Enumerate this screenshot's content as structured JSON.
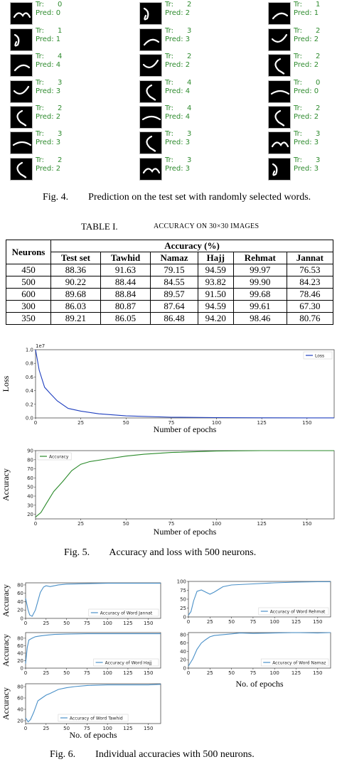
{
  "predictions": [
    {
      "tr": "Tr:      0",
      "pred": "Pred: 0"
    },
    {
      "tr": "Tr:      1",
      "pred": "Pred: 1"
    },
    {
      "tr": "Tr:      4",
      "pred": "Pred: 4"
    },
    {
      "tr": "Tr:      3",
      "pred": "Pred: 3"
    },
    {
      "tr": "Tr:      2",
      "pred": "Pred: 2"
    },
    {
      "tr": "Tr:      3",
      "pred": "Pred: 3"
    },
    {
      "tr": "Tr:      2",
      "pred": "Pred: 2"
    },
    {
      "tr": "Tr:      2",
      "pred": "Pred: 2"
    },
    {
      "tr": "Tr:      3",
      "pred": "Pred: 3"
    },
    {
      "tr": "Tr:      2",
      "pred": "Pred: 2"
    },
    {
      "tr": "Tr:      4",
      "pred": "Pred: 4"
    },
    {
      "tr": "Tr:      4",
      "pred": "Pred: 4"
    },
    {
      "tr": "Tr:      3",
      "pred": "Pred: 3"
    },
    {
      "tr": "Tr:      3",
      "pred": "Pred: 3"
    },
    {
      "tr": "Tr:      1",
      "pred": "Pred: 1"
    },
    {
      "tr": "Tr:      2",
      "pred": "Pred: 2"
    },
    {
      "tr": "Tr:      2",
      "pred": "Pred: 2"
    },
    {
      "tr": "Tr:      0",
      "pred": "Pred: 0"
    },
    {
      "tr": "Tr:      2",
      "pred": "Pred: 2"
    },
    {
      "tr": "Tr:      3",
      "pred": "Pred: 3"
    },
    {
      "tr": "Tr:      3",
      "pred": "Pred: 3"
    }
  ],
  "fig4_caption": "Fig. 4.        Prediction on the test set with randomly selected words.",
  "table_caption_num": "TABLE I.",
  "table_caption_text": "ACCURACY ON 30×30 IMAGES",
  "table": {
    "col_neurons": "Neurons",
    "col_group": "Accuracy (%)",
    "subcols": [
      "Test set",
      "Tawhid",
      "Namaz",
      "Hajj",
      "Rehmat",
      "Jannat"
    ],
    "rows": [
      [
        "450",
        "88.36",
        "91.63",
        "79.15",
        "94.59",
        "99.97",
        "76.53"
      ],
      [
        "500",
        "90.22",
        "88.44",
        "84.55",
        "93.82",
        "99.90",
        "84.23"
      ],
      [
        "600",
        "89.68",
        "88.84",
        "89.57",
        "91.50",
        "99.68",
        "78.46"
      ],
      [
        "300",
        "86.03",
        "80.87",
        "87.64",
        "94.59",
        "99.61",
        "67.30"
      ],
      [
        "350",
        "89.21",
        "86.05",
        "86.48",
        "94.20",
        "98.46",
        "80.76"
      ]
    ]
  },
  "fig5_caption": "Fig. 5.        Accuracy and loss with 500 neurons.",
  "fig6_caption": "Fig. 6.        Individual accuracies with 500 neurons.",
  "chart_data": [
    {
      "type": "line",
      "ylabel": "Loss",
      "xlabel": "Number of epochs",
      "offset_text": "1e7",
      "x": [
        0,
        2,
        5,
        8,
        12,
        18,
        25,
        35,
        50,
        75,
        100,
        125,
        150,
        165
      ],
      "series": [
        {
          "name": "Loss",
          "color": "#1f3fbf",
          "values": [
            1.0,
            0.7,
            0.45,
            0.36,
            0.25,
            0.14,
            0.1,
            0.06,
            0.03,
            0.01,
            0.005,
            0.002,
            0.001,
            0.001
          ]
        }
      ],
      "xlim": [
        0,
        165
      ],
      "ylim": [
        0,
        1.0
      ],
      "xticks": [
        "0",
        "25",
        "50",
        "75",
        "100",
        "125",
        "150"
      ],
      "yticks": [
        "0.0",
        "0.2",
        "0.4",
        "0.6",
        "0.8",
        "1.0"
      ],
      "legend": "top-right"
    },
    {
      "type": "line",
      "ylabel": "Accuracy",
      "xlabel": "Number of epochs",
      "x": [
        0,
        3,
        6,
        10,
        15,
        20,
        25,
        30,
        40,
        50,
        60,
        75,
        100,
        125,
        150,
        165
      ],
      "series": [
        {
          "name": "Accuracy",
          "color": "#2a8a2a",
          "values": [
            17,
            22,
            32,
            45,
            56,
            68,
            75,
            78,
            81,
            84,
            86,
            88,
            89.5,
            90,
            90,
            90
          ]
        }
      ],
      "xlim": [
        0,
        165
      ],
      "ylim": [
        15,
        90
      ],
      "xticks": [
        "0",
        "25",
        "50",
        "75",
        "100",
        "125",
        "150"
      ],
      "yticks": [
        "20",
        "30",
        "40",
        "50",
        "60",
        "70",
        "80",
        "90"
      ],
      "legend": "top-left"
    },
    {
      "type": "line",
      "ylabel": "Accuracy",
      "xlabel": "",
      "x": [
        0,
        3,
        5,
        8,
        12,
        18,
        22,
        25,
        30,
        40,
        50,
        75,
        100,
        125,
        150,
        165
      ],
      "series": [
        {
          "name": "Accuracy of Word Jannat",
          "color": "#4a90c8",
          "values": [
            48,
            20,
            8,
            5,
            20,
            62,
            75,
            78,
            76,
            80,
            82,
            83,
            84,
            84,
            84,
            84
          ]
        }
      ],
      "xlim": [
        0,
        165
      ],
      "ylim": [
        0,
        85
      ],
      "xticks": [
        "0",
        "25",
        "50",
        "75",
        "100",
        "125",
        "150"
      ],
      "yticks": [
        "0",
        "20",
        "40",
        "60",
        "80"
      ],
      "legend": "bottom-right"
    },
    {
      "type": "line",
      "ylabel": "",
      "xlabel": "",
      "x": [
        0,
        3,
        6,
        10,
        15,
        20,
        25,
        30,
        40,
        50,
        75,
        100,
        125,
        150,
        165
      ],
      "series": [
        {
          "name": "Accuracy of Word Rehmat",
          "color": "#4a90c8",
          "values": [
            5,
            15,
            45,
            72,
            76,
            70,
            64,
            70,
            85,
            90,
            93,
            96,
            98,
            99,
            99
          ]
        }
      ],
      "xlim": [
        0,
        165
      ],
      "ylim": [
        0,
        100
      ],
      "xticks": [
        "0",
        "25",
        "50",
        "75",
        "100",
        "125",
        "150"
      ],
      "yticks": [
        "0",
        "25",
        "50",
        "75",
        "100"
      ],
      "legend": "bottom-right"
    },
    {
      "type": "line",
      "ylabel": "Accuracy",
      "xlabel": "",
      "x": [
        0,
        2,
        4,
        8,
        12,
        18,
        25,
        35,
        50,
        75,
        100,
        125,
        150,
        165
      ],
      "series": [
        {
          "name": "Accuracy of Word Hajj",
          "color": "#4a90c8",
          "values": [
            12,
            55,
            75,
            80,
            84,
            86,
            88,
            90,
            91,
            92,
            92,
            92,
            92,
            92
          ]
        }
      ],
      "xlim": [
        0,
        165
      ],
      "ylim": [
        0,
        95
      ],
      "xticks": [
        "0",
        "25",
        "50",
        "75",
        "100",
        "125",
        "150"
      ],
      "yticks": [
        "0",
        "20",
        "40",
        "60",
        "80"
      ],
      "legend": "bottom-right"
    },
    {
      "type": "line",
      "ylabel": "",
      "xlabel": "No. of epochs",
      "x": [
        0,
        5,
        10,
        15,
        20,
        25,
        30,
        40,
        50,
        60,
        75,
        100,
        125,
        150,
        165
      ],
      "series": [
        {
          "name": "Accuracy of Word Namaz",
          "color": "#4a90c8",
          "values": [
            5,
            22,
            45,
            60,
            68,
            75,
            78,
            80,
            82,
            84,
            83,
            84,
            85,
            84,
            85
          ]
        }
      ],
      "xlim": [
        0,
        165
      ],
      "ylim": [
        0,
        85
      ],
      "xticks": [
        "0",
        "25",
        "50",
        "75",
        "100",
        "125",
        "150"
      ],
      "yticks": [
        "0",
        "20",
        "40",
        "60",
        "80"
      ],
      "legend": "bottom-right"
    },
    {
      "type": "line",
      "ylabel": "Accuracy",
      "xlabel": "No. of epochs",
      "x": [
        0,
        3,
        6,
        10,
        15,
        20,
        25,
        30,
        40,
        50,
        60,
        75,
        100,
        125,
        150,
        165
      ],
      "series": [
        {
          "name": "Accuracy of Word Tawhid",
          "color": "#4a90c8",
          "values": [
            25,
            18,
            22,
            35,
            55,
            60,
            65,
            68,
            75,
            78,
            80,
            82,
            83,
            83,
            83,
            84
          ]
        }
      ],
      "xlim": [
        0,
        165
      ],
      "ylim": [
        15,
        85
      ],
      "xticks": [
        "0",
        "25",
        "50",
        "75",
        "100",
        "125",
        "150"
      ],
      "yticks": [
        "20",
        "40",
        "60",
        "80"
      ],
      "legend": "bottom-center"
    }
  ]
}
